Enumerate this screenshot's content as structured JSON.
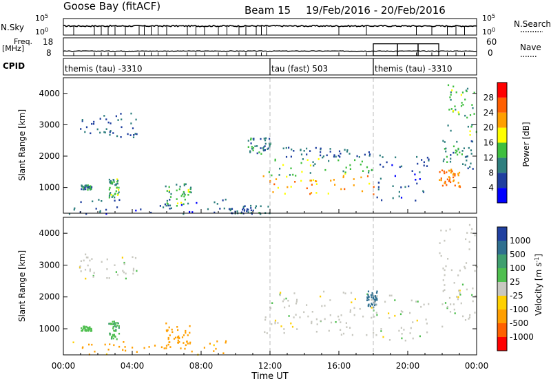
{
  "header": {
    "station": "Goose Bay (fitACF)",
    "beam": "Beam 15",
    "date_range": "19/Feb/2016 - 20/Feb/2016"
  },
  "noise_panel": {
    "left_label": "N.Sky",
    "right_label": "N.Search",
    "tick_top": "10^5",
    "tick_bottom": "10^0",
    "sky_level_log10": 0.55,
    "drop_times_hours": [
      0.6,
      1.8,
      2.2,
      2.6,
      3.0,
      3.6,
      4.4,
      4.7,
      5.1,
      5.5,
      6.0,
      7.2,
      7.7,
      8.2,
      9.0,
      9.5,
      10.2,
      10.6,
      11.2,
      11.5,
      11.8,
      16.0,
      17.6,
      20.5,
      21.4,
      22.3,
      22.8,
      23.3
    ]
  },
  "freq_panel": {
    "left_label": "Freq.",
    "left_unit": "[MHz]",
    "left_ticks": [
      "18",
      "8"
    ],
    "right_label": "Nave",
    "right_ticks": [
      "60",
      "0"
    ],
    "freq_mhz_baseline": 10.6,
    "nave_boxes": [
      {
        "start_h": 18.0,
        "end_h": 19.4,
        "nave": 40
      },
      {
        "start_h": 19.4,
        "end_h": 20.6,
        "nave": 40
      },
      {
        "start_h": 20.6,
        "end_h": 21.8,
        "nave": 40
      }
    ]
  },
  "cpid_panel": {
    "label": "CPID",
    "segments": [
      {
        "start_h": 0,
        "end_h": 12,
        "name": "themis (tau)  -3310"
      },
      {
        "start_h": 12,
        "end_h": 18,
        "name": "tau (fast)  503"
      },
      {
        "start_h": 18,
        "end_h": 24,
        "name": "themis (tau)  -3310"
      }
    ]
  },
  "x_axis": {
    "title": "Time UT",
    "ticks": [
      "00:00",
      "04:00",
      "08:00",
      "12:00",
      "16:00",
      "20:00",
      "00:00"
    ],
    "range_hours": [
      0,
      24
    ]
  },
  "power_colorbar": {
    "title": "Power [dB]",
    "ticks": [
      "4",
      "8",
      "12",
      "16",
      "20",
      "24",
      "28"
    ],
    "colors": [
      "#0000ff",
      "#1f3f9f",
      "#2f7f7f",
      "#3fbf3f",
      "#ffff00",
      "#ff9f00",
      "#ff5f00",
      "#ff0000"
    ]
  },
  "velocity_colorbar": {
    "title": "Velocity [m s^-1]",
    "ticks": [
      "1000",
      "500",
      "100",
      "25",
      "-25",
      "-100",
      "-500",
      "-1000"
    ],
    "colors": [
      "#2040a0",
      "#2f6f8f",
      "#3f9f6f",
      "#4fbf4f",
      "#c8c8c0",
      "#ffd000",
      "#ff9f00",
      "#ff6000",
      "#ff0000"
    ]
  },
  "chart_data": [
    {
      "type": "heatmap",
      "title": "",
      "xlabel": "Time UT",
      "ylabel": "Slant Range [km]",
      "xlim_hours": [
        0,
        24
      ],
      "ylim_km": [
        180,
        4500
      ],
      "yticks": [
        1000,
        2000,
        3000,
        4000
      ],
      "value_label": "Power [dB]",
      "regions": [
        {
          "t0": 0.9,
          "t1": 4.3,
          "r0": 2600,
          "r1": 3400,
          "power_db": 8
        },
        {
          "t0": 1.0,
          "t1": 1.6,
          "r0": 950,
          "r1": 1100,
          "power_db": 10
        },
        {
          "t0": 2.6,
          "t1": 3.2,
          "r0": 700,
          "r1": 1300,
          "power_db": 13
        },
        {
          "t0": 5.9,
          "t1": 7.4,
          "r0": 400,
          "r1": 1200,
          "power_db": 13
        },
        {
          "t0": 0.0,
          "t1": 9.5,
          "r0": 180,
          "r1": 650,
          "power_db": 7
        },
        {
          "t0": 9.5,
          "t1": 12.0,
          "r0": 180,
          "r1": 450,
          "power_db": 9
        },
        {
          "t0": 11.5,
          "t1": 18.0,
          "r0": 800,
          "r1": 1400,
          "power_db": 22
        },
        {
          "t0": 11.8,
          "t1": 18.0,
          "r0": 1400,
          "r1": 2000,
          "power_db": 13
        },
        {
          "t0": 12.5,
          "t1": 17.8,
          "r0": 2000,
          "r1": 2300,
          "power_db": 8
        },
        {
          "t0": 10.7,
          "t1": 12.0,
          "r0": 2100,
          "r1": 2600,
          "power_db": 10
        },
        {
          "t0": 18.0,
          "t1": 21.2,
          "r0": 600,
          "r1": 2100,
          "power_db": 7
        },
        {
          "t0": 21.8,
          "t1": 23.0,
          "r0": 1000,
          "r1": 1600,
          "power_db": 24
        },
        {
          "t0": 22.0,
          "t1": 23.8,
          "r0": 1600,
          "r1": 2600,
          "power_db": 11
        },
        {
          "t0": 22.3,
          "t1": 24.0,
          "r0": 2600,
          "r1": 4300,
          "power_db": 14
        }
      ]
    },
    {
      "type": "heatmap",
      "title": "",
      "xlabel": "Time UT",
      "ylabel": "Slant Range [km]",
      "xlim_hours": [
        0,
        24
      ],
      "ylim_km": [
        180,
        4500
      ],
      "yticks": [
        1000,
        2000,
        3000,
        4000
      ],
      "value_label": "Velocity [m s^-1]",
      "regions": [
        {
          "t0": 0.9,
          "t1": 4.3,
          "r0": 2600,
          "r1": 3400,
          "velocity": 0
        },
        {
          "t0": 1.0,
          "t1": 1.6,
          "r0": 950,
          "r1": 1100,
          "velocity": 60
        },
        {
          "t0": 2.6,
          "t1": 3.2,
          "r0": 700,
          "r1": 1300,
          "velocity": 80
        },
        {
          "t0": 5.9,
          "t1": 7.4,
          "r0": 400,
          "r1": 1200,
          "velocity": -150
        },
        {
          "t0": 0.0,
          "t1": 9.5,
          "r0": 180,
          "r1": 650,
          "velocity": -120
        },
        {
          "t0": 11.5,
          "t1": 18.0,
          "r0": 800,
          "r1": 1400,
          "velocity": 0
        },
        {
          "t0": 11.8,
          "t1": 18.0,
          "r0": 1400,
          "r1": 2200,
          "velocity": 0
        },
        {
          "t0": 17.6,
          "t1": 18.2,
          "r0": 1700,
          "r1": 2200,
          "velocity": 600
        },
        {
          "t0": 18.0,
          "t1": 21.2,
          "r0": 600,
          "r1": 2100,
          "velocity": 0
        },
        {
          "t0": 21.8,
          "t1": 24.0,
          "r0": 1000,
          "r1": 4300,
          "velocity": 0
        }
      ]
    }
  ]
}
